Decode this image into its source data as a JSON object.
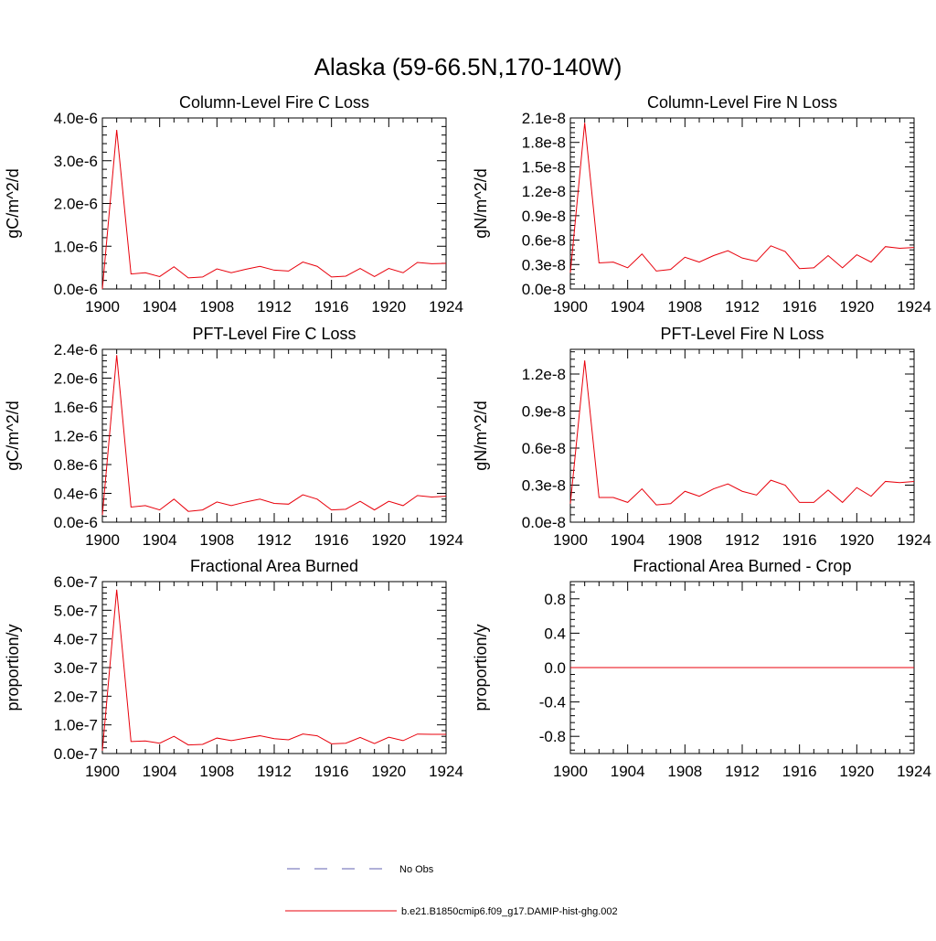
{
  "page_title": "Alaska (59-66.5N,170-140W)",
  "colors": {
    "series": "#e8000b",
    "obs": "#6060b0",
    "axis": "#000000"
  },
  "chart_data": [
    {
      "type": "line",
      "title": "Column-Level Fire C Loss",
      "ylabel": "gC/m^2/d",
      "x": [
        1900,
        1901,
        1902,
        1903,
        1904,
        1905,
        1906,
        1907,
        1908,
        1909,
        1910,
        1911,
        1912,
        1913,
        1914,
        1915,
        1916,
        1917,
        1918,
        1919,
        1920,
        1921,
        1922,
        1923,
        1924
      ],
      "series": [
        {
          "values": [
            0.0,
            3.72e-06,
            3.5e-07,
            3.8e-07,
            2.9e-07,
            5.2e-07,
            2.6e-07,
            2.8e-07,
            4.7e-07,
            3.8e-07,
            4.6e-07,
            5.3e-07,
            4.4e-07,
            4.2e-07,
            6.3e-07,
            5.3e-07,
            2.8e-07,
            3e-07,
            4.8e-07,
            2.9e-07,
            4.8e-07,
            3.8e-07,
            6.2e-07,
            5.9e-07,
            6e-07
          ]
        }
      ],
      "xlim": [
        1900,
        1924
      ],
      "ylim": [
        0,
        4e-06
      ],
      "yticks": [
        0,
        1e-06,
        2e-06,
        3e-06,
        4e-06
      ],
      "ytick_labels": [
        "0.0e-6",
        "1.0e-6",
        "2.0e-6",
        "3.0e-6",
        "4.0e-6"
      ],
      "xticks": [
        1900,
        1904,
        1908,
        1912,
        1916,
        1920,
        1924
      ],
      "xtick_labels": [
        "1900",
        "1904",
        "1908",
        "1912",
        "1916",
        "1920",
        "1924"
      ]
    },
    {
      "type": "line",
      "title": "Column-Level Fire N Loss",
      "ylabel": "gN/m^2/d",
      "x": [
        1900,
        1901,
        1902,
        1903,
        1904,
        1905,
        1906,
        1907,
        1908,
        1909,
        1910,
        1911,
        1912,
        1913,
        1914,
        1915,
        1916,
        1917,
        1918,
        1919,
        1920,
        1921,
        1922,
        1923,
        1924
      ],
      "series": [
        {
          "values": [
            2e-09,
            2.04e-08,
            3.2e-09,
            3.3e-09,
            2.6e-09,
            4.3e-09,
            2.2e-09,
            2.4e-09,
            3.9e-09,
            3.3e-09,
            4.1e-09,
            4.7e-09,
            3.8e-09,
            3.4e-09,
            5.3e-09,
            4.6e-09,
            2.5e-09,
            2.6e-09,
            4.1e-09,
            2.6e-09,
            4.2e-09,
            3.3e-09,
            5.2e-09,
            5e-09,
            5.1e-09
          ]
        }
      ],
      "xlim": [
        1900,
        1924
      ],
      "ylim": [
        0,
        2.1e-08
      ],
      "yticks": [
        0,
        3e-09,
        6e-09,
        9e-09,
        1.2e-08,
        1.5e-08,
        1.8e-08,
        2.1e-08
      ],
      "ytick_labels": [
        "0.0e-8",
        "0.3e-8",
        "0.6e-8",
        "0.9e-8",
        "1.2e-8",
        "1.5e-8",
        "1.8e-8",
        "2.1e-8"
      ],
      "xticks": [
        1900,
        1904,
        1908,
        1912,
        1916,
        1920,
        1924
      ],
      "xtick_labels": [
        "1900",
        "1904",
        "1908",
        "1912",
        "1916",
        "1920",
        "1924"
      ]
    },
    {
      "type": "line",
      "title": "PFT-Level Fire C Loss",
      "ylabel": "gC/m^2/d",
      "x": [
        1900,
        1901,
        1902,
        1903,
        1904,
        1905,
        1906,
        1907,
        1908,
        1909,
        1910,
        1911,
        1912,
        1913,
        1914,
        1915,
        1916,
        1917,
        1918,
        1919,
        1920,
        1921,
        1922,
        1923,
        1924
      ],
      "series": [
        {
          "values": [
            1e-07,
            2.32e-06,
            2.1e-07,
            2.3e-07,
            1.7e-07,
            3.2e-07,
            1.5e-07,
            1.7e-07,
            2.8e-07,
            2.3e-07,
            2.8e-07,
            3.2e-07,
            2.6e-07,
            2.5e-07,
            3.8e-07,
            3.2e-07,
            1.7e-07,
            1.8e-07,
            2.9e-07,
            1.7e-07,
            2.9e-07,
            2.3e-07,
            3.7e-07,
            3.5e-07,
            3.6e-07
          ]
        }
      ],
      "xlim": [
        1900,
        1924
      ],
      "ylim": [
        0,
        2.4e-06
      ],
      "yticks": [
        0,
        4e-07,
        8e-07,
        1.2e-06,
        1.6e-06,
        2e-06,
        2.4e-06
      ],
      "ytick_labels": [
        "0.0e-6",
        "0.4e-6",
        "0.8e-6",
        "1.2e-6",
        "1.6e-6",
        "2.0e-6",
        "2.4e-6"
      ],
      "xticks": [
        1900,
        1904,
        1908,
        1912,
        1916,
        1920,
        1924
      ],
      "xtick_labels": [
        "1900",
        "1904",
        "1908",
        "1912",
        "1916",
        "1920",
        "1924"
      ]
    },
    {
      "type": "line",
      "title": "PFT-Level Fire N Loss",
      "ylabel": "gN/m^2/d",
      "x": [
        1900,
        1901,
        1902,
        1903,
        1904,
        1905,
        1906,
        1907,
        1908,
        1909,
        1910,
        1911,
        1912,
        1913,
        1914,
        1915,
        1916,
        1917,
        1918,
        1919,
        1920,
        1921,
        1922,
        1923,
        1924
      ],
      "series": [
        {
          "values": [
            1.5e-09,
            1.31e-08,
            2e-09,
            2e-09,
            1.6e-09,
            2.7e-09,
            1.4e-09,
            1.5e-09,
            2.5e-09,
            2.1e-09,
            2.7e-09,
            3.1e-09,
            2.5e-09,
            2.2e-09,
            3.4e-09,
            3e-09,
            1.6e-09,
            1.6e-09,
            2.6e-09,
            1.6e-09,
            2.8e-09,
            2.1e-09,
            3.3e-09,
            3.2e-09,
            3.3e-09
          ]
        }
      ],
      "xlim": [
        1900,
        1924
      ],
      "ylim": [
        0,
        1.4e-08
      ],
      "yticks": [
        0,
        3e-09,
        6e-09,
        9e-09,
        1.2e-08
      ],
      "ytick_labels": [
        "0.0e-8",
        "0.3e-8",
        "0.6e-8",
        "0.9e-8",
        "1.2e-8"
      ],
      "xticks": [
        1900,
        1904,
        1908,
        1912,
        1916,
        1920,
        1924
      ],
      "xtick_labels": [
        "1900",
        "1904",
        "1908",
        "1912",
        "1916",
        "1920",
        "1924"
      ]
    },
    {
      "type": "line",
      "title": "Fractional Area Burned",
      "ylabel": "proportion/y",
      "x": [
        1900,
        1901,
        1902,
        1903,
        1904,
        1905,
        1906,
        1907,
        1908,
        1909,
        1910,
        1911,
        1912,
        1913,
        1914,
        1915,
        1916,
        1917,
        1918,
        1919,
        1920,
        1921,
        1922,
        1923,
        1924
      ],
      "series": [
        {
          "values": [
            1e-08,
            5.72e-07,
            4.2e-08,
            4.4e-08,
            3.6e-08,
            6e-08,
            3e-08,
            3.2e-08,
            5.4e-08,
            4.5e-08,
            5.4e-08,
            6.2e-08,
            5.2e-08,
            4.8e-08,
            6.8e-08,
            6.2e-08,
            3.4e-08,
            3.6e-08,
            5.6e-08,
            3.5e-08,
            5.7e-08,
            4.5e-08,
            6.8e-08,
            6.7e-08,
            6.7e-08
          ]
        }
      ],
      "xlim": [
        1900,
        1924
      ],
      "ylim": [
        0,
        6e-07
      ],
      "yticks": [
        0,
        1e-07,
        2e-07,
        3e-07,
        4e-07,
        5e-07,
        6e-07
      ],
      "ytick_labels": [
        "0.0e-7",
        "1.0e-7",
        "2.0e-7",
        "3.0e-7",
        "4.0e-7",
        "5.0e-7",
        "6.0e-7"
      ],
      "xticks": [
        1900,
        1904,
        1908,
        1912,
        1916,
        1920,
        1924
      ],
      "xtick_labels": [
        "1900",
        "1904",
        "1908",
        "1912",
        "1916",
        "1920",
        "1924"
      ]
    },
    {
      "type": "line",
      "title": "Fractional Area Burned - Crop",
      "ylabel": "proportion/y",
      "x": [
        1900,
        1924
      ],
      "series": [
        {
          "values": [
            0,
            0
          ]
        }
      ],
      "xlim": [
        1900,
        1924
      ],
      "ylim": [
        -1.0,
        1.0
      ],
      "yticks": [
        -0.8,
        -0.4,
        0.0,
        0.4,
        0.8
      ],
      "ytick_labels": [
        "-0.8",
        "-0.4",
        "0.0",
        "0.4",
        "0.8"
      ],
      "xticks": [
        1900,
        1904,
        1908,
        1912,
        1916,
        1920,
        1924
      ],
      "xtick_labels": [
        "1900",
        "1904",
        "1908",
        "1912",
        "1916",
        "1920",
        "1924"
      ]
    }
  ],
  "legend": [
    {
      "label": "No Obs",
      "style": "dashed"
    },
    {
      "label": "b.e21.B1850cmip6.f09_g17.DAMIP-hist-ghg.002",
      "style": "solid"
    }
  ]
}
